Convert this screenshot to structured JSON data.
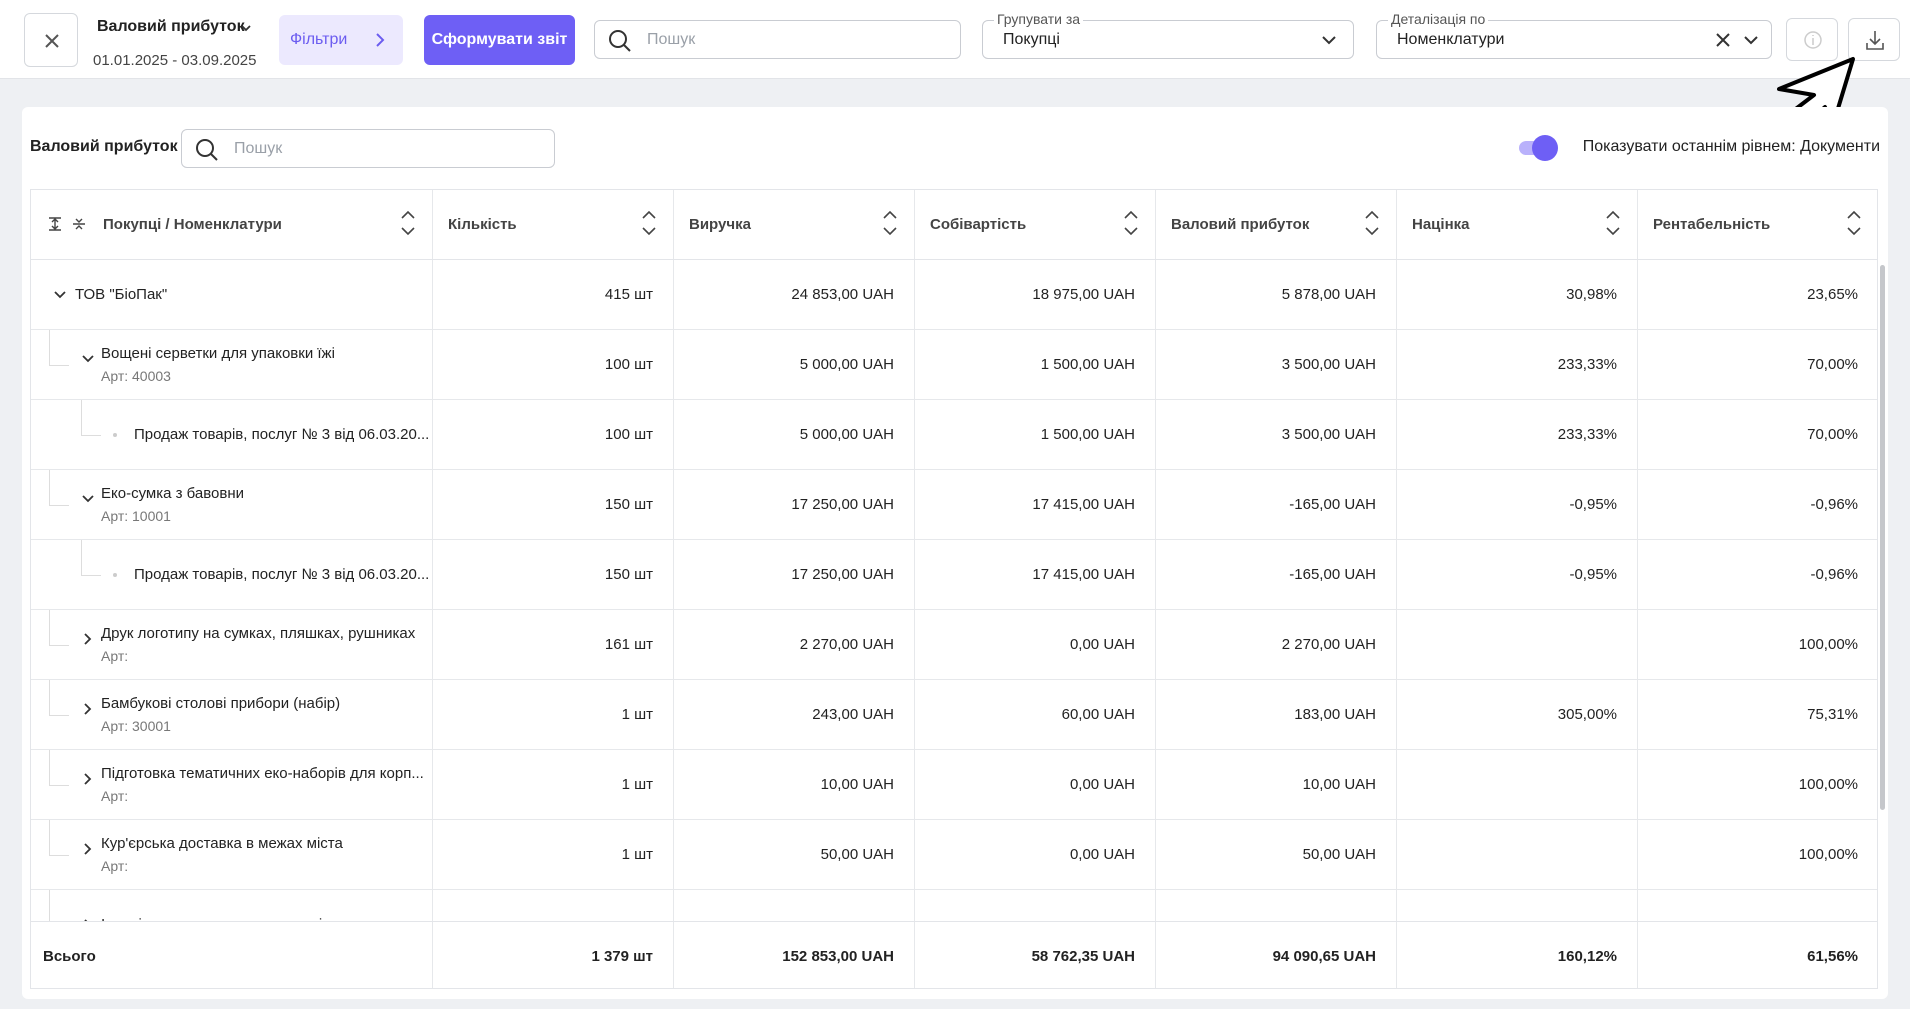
{
  "header": {
    "title": "Валовий прибуток",
    "period": "01.01.2025 - 03.09.2025",
    "filters": "Фільтри",
    "generate": "Сформувати звіт",
    "search_placeholder": "Пошук",
    "group_by": {
      "label": "Групувати за",
      "value": "Покупці"
    },
    "detail_by": {
      "label": "Деталізація по",
      "value": "Номенклатури"
    }
  },
  "panel": {
    "title": "Валовий прибуток",
    "search_placeholder": "Пошук",
    "toggle_label": "Показувати останнім рівнем: Документи"
  },
  "table": {
    "columns": [
      "Покупці / Номенклатури",
      "Кількість",
      "Виручка",
      "Собівартість",
      "Валовий прибуток",
      "Націнка",
      "Рентабельність"
    ],
    "groups": [
      {
        "name": "ТОВ \"БіоПак\"",
        "cells": [
          "415 шт",
          "24 853,00 UAH",
          "18 975,00 UAH",
          "5 878,00 UAH",
          "30,98%",
          "23,65%"
        ],
        "items": [
          {
            "name": "Вощені серветки для упаковки їжі",
            "article": "Арт: 40003",
            "cells": [
              "100 шт",
              "5 000,00 UAH",
              "1 500,00 UAH",
              "3 500,00 UAH",
              "233,33%",
              "70,00%"
            ],
            "documents": [
              {
                "name": "Продаж товарів, послуг № 3 від 06.03.20...",
                "cells": [
                  "100 шт",
                  "5 000,00 UAH",
                  "1 500,00 UAH",
                  "3 500,00 UAH",
                  "233,33%",
                  "70,00%"
                ]
              }
            ]
          },
          {
            "name": "Еко-сумка з бавовни",
            "article": "Арт: 10001",
            "cells": [
              "150 шт",
              "17 250,00 UAH",
              "17 415,00 UAH",
              "-165,00 UAH",
              "-0,95%",
              "-0,96%"
            ],
            "documents": [
              {
                "name": "Продаж товарів, послуг № 3 від 06.03.20...",
                "cells": [
                  "150 шт",
                  "17 250,00 UAH",
                  "17 415,00 UAH",
                  "-165,00 UAH",
                  "-0,95%",
                  "-0,96%"
                ]
              }
            ]
          },
          {
            "name": "Друк логотипу на сумках, пляшках, рушниках",
            "article": "Арт:",
            "cells": [
              "161 шт",
              "2 270,00 UAH",
              "0,00 UAH",
              "2 270,00 UAH",
              null,
              "100,00%"
            ]
          },
          {
            "name": "Бамбукові столові прибори (набір)",
            "article": "Арт: 30001",
            "cells": [
              "1 шт",
              "243,00 UAH",
              "60,00 UAH",
              "183,00 UAH",
              "305,00%",
              "75,31%"
            ]
          },
          {
            "name": "Підготовка тематичних еко-наборів для корп...",
            "article": "Арт:",
            "cells": [
              "1 шт",
              "10,00 UAH",
              "0,00 UAH",
              "10,00 UAH",
              null,
              "100,00%"
            ]
          },
          {
            "name": "Кур'єрська доставка в межах міста",
            "article": "Арт:",
            "cells": [
              "1 шт",
              "50,00 UAH",
              "0,00 UAH",
              "50,00 UAH",
              null,
              "100,00%"
            ]
          },
          {
            "name": "Індивідуальне пакування товарів"
          }
        ]
      }
    ],
    "total": {
      "label": "Всього",
      "cells": [
        "1 379 шт",
        "152 853,00 UAH",
        "58 762,35 UAH",
        "94 090,65 UAH",
        "160,12%",
        "61,56%"
      ]
    }
  }
}
